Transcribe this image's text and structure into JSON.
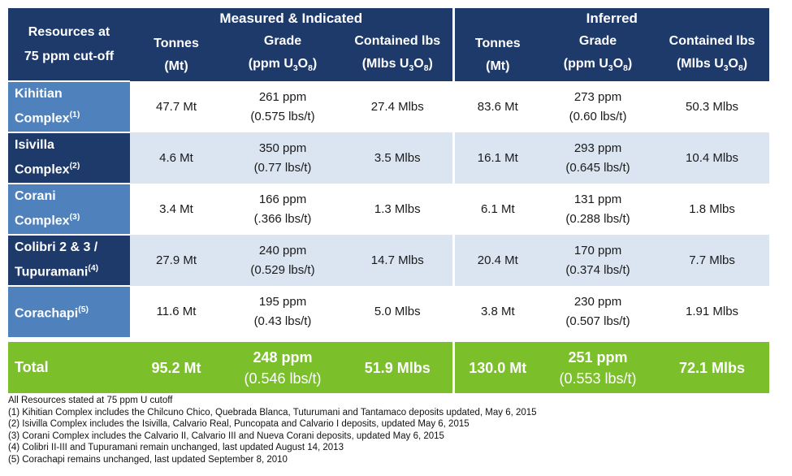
{
  "header": {
    "corner_line1": "Resources at",
    "corner_line2": "75 ppm cut-off",
    "group_measured": "Measured & Indicated",
    "group_inferred": "Inferred",
    "tonnes_line1": "Tonnes",
    "tonnes_line2": "(Mt)",
    "grade_line1": "Grade",
    "grade_line2_pre": "(ppm U",
    "grade_sub1": "3",
    "grade_mid": "O",
    "grade_sub2": "8",
    "grade_post": ")",
    "lbs_line1": "Contained lbs",
    "lbs_line2_pre": "(Mlbs U",
    "lbs_sub1": "3",
    "lbs_mid": "O",
    "lbs_sub2": "8",
    "lbs_post": ")"
  },
  "rows": [
    {
      "name_line1": "Kihitian",
      "name_line2": "Complex",
      "note": "(1)",
      "mi_tonnes": "47.7 Mt",
      "mi_grade": "261 ppm",
      "mi_grade_lbs": "(0.575 lbs/t)",
      "mi_lbs": "27.4 Mlbs",
      "inf_tonnes": "83.6 Mt",
      "inf_grade": "273 ppm",
      "inf_grade_lbs": "(0.60 lbs/t)",
      "inf_lbs": "50.3 Mlbs"
    },
    {
      "name_line1": "Isivilla",
      "name_line2": "Complex",
      "note": "(2)",
      "mi_tonnes": "4.6 Mt",
      "mi_grade": "350 ppm",
      "mi_grade_lbs": "(0.77 lbs/t)",
      "mi_lbs": "3.5 Mlbs",
      "inf_tonnes": "16.1 Mt",
      "inf_grade": "293 ppm",
      "inf_grade_lbs": "(0.645 lbs/t)",
      "inf_lbs": "10.4 Mlbs"
    },
    {
      "name_line1": "Corani",
      "name_line2": "Complex",
      "note": "(3)",
      "mi_tonnes": "3.4 Mt",
      "mi_grade": "166 ppm",
      "mi_grade_lbs": "(.366 lbs/t)",
      "mi_lbs": "1.3 Mlbs",
      "inf_tonnes": "6.1 Mt",
      "inf_grade": "131 ppm",
      "inf_grade_lbs": "(0.288 lbs/t)",
      "inf_lbs": "1.8 Mlbs"
    },
    {
      "name_line1": "Colibri 2 & 3 /",
      "name_line2": "Tupuramani",
      "note": "(4)",
      "mi_tonnes": "27.9 Mt",
      "mi_grade": "240 ppm",
      "mi_grade_lbs": "(0.529 lbs/t)",
      "mi_lbs": "14.7 Mlbs",
      "inf_tonnes": "20.4 Mt",
      "inf_grade": "170 ppm",
      "inf_grade_lbs": "(0.374 lbs/t)",
      "inf_lbs": "7.7 Mlbs"
    },
    {
      "name_line1": "",
      "name_line2": "Corachapi",
      "note": "(5)",
      "mi_tonnes": "11.6 Mt",
      "mi_grade": "195 ppm",
      "mi_grade_lbs": "(0.43 lbs/t)",
      "mi_lbs": "5.0 Mlbs",
      "inf_tonnes": "3.8 Mt",
      "inf_grade": "230 ppm",
      "inf_grade_lbs": "(0.507 lbs/t)",
      "inf_lbs": "1.91 Mlbs"
    }
  ],
  "total": {
    "label": "Total",
    "mi_tonnes": "95.2 Mt",
    "mi_grade": "248 ppm",
    "mi_grade_lbs": "(0.546 lbs/t)",
    "mi_lbs": "51.9 Mlbs",
    "inf_tonnes": "130.0 Mt",
    "inf_grade": "251 ppm",
    "inf_grade_lbs": "(0.553 lbs/t)",
    "inf_lbs": "72.1 Mlbs"
  },
  "notes": [
    "All Resources stated at 75 ppm U cutoff",
    "(1) Kihitian Complex includes the Chilcuno Chico, Quebrada Blanca, Tuturumani and Tantamaco deposits updated, May 6, 2015",
    "(2) Isivilla Complex includes the Isivilla, Calvario Real, Puncopata and Calvario I deposits, updated May 6, 2015",
    "(3) Corani Complex includes the Calvario II, Calvario III and Nueva Corani deposits, updated May 6, 2015",
    "(4) Colibri II-III and Tupuramani remain unchanged, last updated August 14, 2013",
    "(5) Corachapi remains unchanged, last updated September 8, 2010"
  ],
  "colors": {
    "header_dark": "#1d3a6b",
    "row_label_blue": "#4f81bd",
    "row_light": "#dbe5f1",
    "total_green": "#7bbf2a"
  }
}
